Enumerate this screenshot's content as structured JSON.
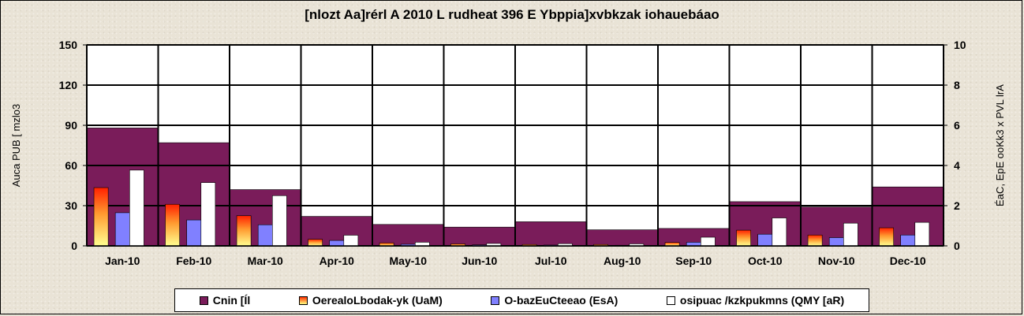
{
  "chart_data": {
    "type": "bar",
    "title": "[nlozt Aa]rérl A 2010 L rudheat 396 E Ybppia]xvbkzak iohauebáao",
    "ylabel_left": "Auca PUB [ mzlo3",
    "ylabel_right": "ÉaC, EpE ooKk3 x PVL lrA",
    "ylim_left": [
      0,
      150
    ],
    "ylim_right": [
      0,
      10
    ],
    "yticks_left": [
      "0",
      "30",
      "60",
      "90",
      "120",
      "150"
    ],
    "yticks_right": [
      "0",
      "2",
      "4",
      "6",
      "8",
      "10"
    ],
    "grid": true,
    "legend_position": "bottom",
    "categories": [
      "Jan-10",
      "Feb-10",
      "Mar-10",
      "Apr-10",
      "May-10",
      "Jun-10",
      "Jul-10",
      "Aug-10",
      "Sep-10",
      "Oct-10",
      "Nov-10",
      "Dec-10"
    ],
    "series": [
      {
        "name": "Cnin [Íl",
        "axis": "left",
        "color": "#7a1c5a",
        "style": "wide",
        "values": [
          88,
          77,
          42,
          22,
          16,
          14,
          18,
          12,
          13,
          33,
          29,
          44
        ]
      },
      {
        "name": "OerealoLbodak-yk (UaM)",
        "axis": "right",
        "color": "#ff3000",
        "style": "gradient",
        "values": [
          2.9,
          2.07,
          1.5,
          0.33,
          0.15,
          0.1,
          0.07,
          0.07,
          0.17,
          0.78,
          0.54,
          0.9
        ]
      },
      {
        "name": "O-bazEuCteeao (EsA)",
        "axis": "right",
        "color": "#8080ff",
        "style": "solid",
        "values": [
          1.65,
          1.29,
          1.05,
          0.27,
          0.08,
          0.05,
          0.04,
          0.03,
          0.18,
          0.58,
          0.41,
          0.54
        ]
      },
      {
        "name": "osipuac /kzkpukmns (QMY [aR)",
        "axis": "right",
        "color": "#ffffff",
        "style": "solid",
        "values": [
          3.77,
          3.15,
          2.5,
          0.53,
          0.18,
          0.12,
          0.11,
          0.1,
          0.43,
          1.39,
          1.13,
          1.17
        ]
      }
    ]
  }
}
